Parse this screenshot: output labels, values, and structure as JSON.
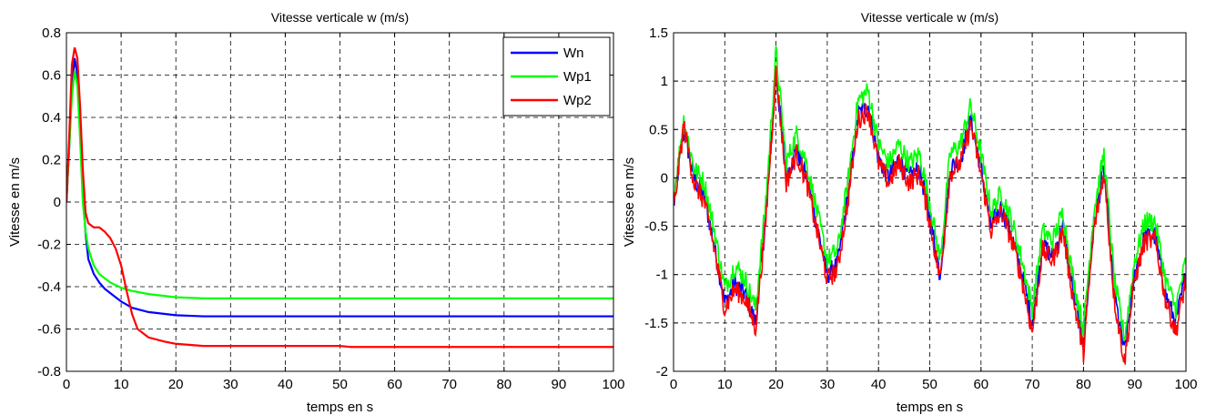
{
  "chart_data": [
    {
      "type": "line",
      "title": "Vitesse verticale w (m/s)",
      "xlabel": "temps en s",
      "ylabel": "Vitesse en m/s",
      "xlim": [
        0,
        100
      ],
      "ylim": [
        -0.8,
        0.8
      ],
      "xticks": [
        0,
        10,
        20,
        30,
        40,
        50,
        60,
        70,
        80,
        90,
        100
      ],
      "yticks": [
        -0.8,
        -0.6,
        -0.4,
        -0.2,
        0,
        0.2,
        0.4,
        0.6,
        0.8
      ],
      "ytick_labels": [
        "-0.8",
        "-0.6",
        "-0.4",
        "-0.2",
        "0",
        "0.2",
        "0.4",
        "0.6",
        "0.8"
      ],
      "grid": true,
      "legend_position": "top-right",
      "series": [
        {
          "name": "Wn",
          "color": "#0000ff",
          "x": [
            0,
            0.5,
            1,
            1.5,
            2,
            2.5,
            3,
            3.5,
            4,
            5,
            6,
            7,
            8,
            10,
            12,
            15,
            20,
            25,
            30,
            40,
            50,
            60,
            70,
            80,
            90,
            100
          ],
          "y": [
            0,
            0.25,
            0.55,
            0.68,
            0.6,
            0.38,
            0.05,
            -0.15,
            -0.27,
            -0.34,
            -0.38,
            -0.41,
            -0.43,
            -0.47,
            -0.5,
            -0.52,
            -0.535,
            -0.54,
            -0.54,
            -0.54,
            -0.54,
            -0.54,
            -0.54,
            -0.54,
            -0.54,
            -0.54
          ]
        },
        {
          "name": "Wp1",
          "color": "#00ff00",
          "x": [
            0,
            0.5,
            1,
            1.5,
            2,
            2.5,
            3,
            3.5,
            4,
            5,
            6,
            7,
            8,
            10,
            12,
            15,
            20,
            25,
            30,
            40,
            50,
            60,
            70,
            80,
            90,
            100
          ],
          "y": [
            0,
            0.25,
            0.5,
            0.62,
            0.55,
            0.3,
            0.0,
            -0.14,
            -0.22,
            -0.3,
            -0.34,
            -0.36,
            -0.38,
            -0.405,
            -0.42,
            -0.435,
            -0.45,
            -0.455,
            -0.455,
            -0.455,
            -0.455,
            -0.455,
            -0.455,
            -0.455,
            -0.455,
            -0.455
          ]
        },
        {
          "name": "Wp2",
          "color": "#ff0000",
          "x": [
            0,
            0.5,
            1,
            1.5,
            2,
            2.5,
            3,
            3.5,
            4,
            5,
            6,
            7,
            8,
            9,
            10,
            11,
            12,
            13,
            15,
            18,
            20,
            25,
            30,
            40,
            50,
            52,
            60,
            70,
            80,
            90,
            100
          ],
          "y": [
            0,
            0.3,
            0.65,
            0.73,
            0.68,
            0.45,
            0.15,
            -0.05,
            -0.1,
            -0.12,
            -0.12,
            -0.14,
            -0.17,
            -0.22,
            -0.3,
            -0.42,
            -0.53,
            -0.6,
            -0.64,
            -0.66,
            -0.67,
            -0.68,
            -0.68,
            -0.68,
            -0.68,
            -0.685,
            -0.685,
            -0.685,
            -0.685,
            -0.685,
            -0.685
          ]
        }
      ]
    },
    {
      "type": "line",
      "title": "Vitesse verticale w (m/s)",
      "xlabel": "temps en s",
      "ylabel": "Vitesse en m/s",
      "xlim": [
        0,
        100
      ],
      "ylim": [
        -2,
        1.5
      ],
      "xticks": [
        0,
        10,
        20,
        30,
        40,
        50,
        60,
        70,
        80,
        90,
        100
      ],
      "yticks": [
        -2,
        -1.5,
        -1,
        -0.5,
        0,
        0.5,
        1,
        1.5
      ],
      "ytick_labels": [
        "-2",
        "-1.5",
        "-1",
        "-0.5",
        "0",
        "0.5",
        "1",
        "1.5"
      ],
      "grid": true,
      "series": [
        {
          "color": "#0000ff",
          "x": [
            0,
            2,
            4,
            6,
            8,
            10,
            12,
            14,
            16,
            18,
            20,
            22,
            24,
            26,
            28,
            30,
            32,
            34,
            36,
            38,
            40,
            42,
            44,
            46,
            48,
            50,
            52,
            54,
            56,
            58,
            60,
            62,
            64,
            66,
            68,
            70,
            72,
            74,
            76,
            78,
            80,
            82,
            84,
            86,
            88,
            90,
            92,
            94,
            96,
            98,
            100
          ],
          "y": [
            -0.3,
            0.5,
            0.0,
            -0.2,
            -0.7,
            -1.3,
            -1.1,
            -1.2,
            -1.5,
            -0.4,
            1.1,
            0.0,
            0.3,
            0.0,
            -0.5,
            -1.0,
            -0.9,
            -0.2,
            0.65,
            0.75,
            0.2,
            0.0,
            0.2,
            0.0,
            0.1,
            -0.4,
            -1.0,
            0.1,
            0.2,
            0.6,
            0.1,
            -0.5,
            -0.3,
            -0.6,
            -1.0,
            -1.5,
            -0.7,
            -0.8,
            -0.5,
            -1.2,
            -1.7,
            -0.5,
            0.1,
            -1.2,
            -1.8,
            -1.0,
            -0.6,
            -0.6,
            -1.2,
            -1.5,
            -1.0
          ]
        },
        {
          "color": "#00ff00",
          "x": [
            0,
            2,
            4,
            6,
            8,
            10,
            12,
            14,
            16,
            18,
            20,
            22,
            24,
            26,
            28,
            30,
            32,
            34,
            36,
            38,
            40,
            42,
            44,
            46,
            48,
            50,
            52,
            54,
            56,
            58,
            60,
            62,
            64,
            66,
            68,
            70,
            72,
            74,
            76,
            78,
            80,
            82,
            84,
            86,
            88,
            90,
            92,
            94,
            96,
            98,
            100
          ],
          "y": [
            -0.2,
            0.6,
            0.1,
            -0.05,
            -0.55,
            -1.15,
            -0.9,
            -1.05,
            -1.35,
            -0.25,
            1.3,
            0.15,
            0.45,
            0.15,
            -0.35,
            -0.85,
            -0.75,
            -0.05,
            0.8,
            0.9,
            0.35,
            0.15,
            0.35,
            0.15,
            0.25,
            -0.25,
            -0.85,
            0.25,
            0.35,
            0.75,
            0.25,
            -0.35,
            -0.15,
            -0.45,
            -0.85,
            -1.35,
            -0.55,
            -0.65,
            -0.35,
            -1.05,
            -1.55,
            -0.35,
            0.25,
            -1.05,
            -1.65,
            -0.85,
            -0.45,
            -0.45,
            -1.05,
            -1.35,
            -0.85
          ]
        },
        {
          "color": "#ff0000",
          "x": [
            0,
            2,
            4,
            6,
            8,
            10,
            12,
            14,
            16,
            18,
            20,
            22,
            24,
            26,
            28,
            30,
            32,
            34,
            36,
            38,
            40,
            42,
            44,
            46,
            48,
            50,
            52,
            54,
            56,
            58,
            60,
            62,
            64,
            66,
            68,
            70,
            72,
            74,
            76,
            78,
            80,
            82,
            84,
            86,
            88,
            90,
            92,
            94,
            96,
            98,
            100
          ],
          "y": [
            -0.35,
            0.55,
            -0.05,
            -0.25,
            -0.75,
            -1.35,
            -1.15,
            -1.25,
            -1.55,
            -0.45,
            1.1,
            -0.05,
            0.25,
            -0.05,
            -0.55,
            -1.05,
            -0.95,
            -0.25,
            0.6,
            0.7,
            0.15,
            -0.05,
            0.15,
            -0.05,
            0.05,
            -0.45,
            -1.05,
            0.05,
            0.15,
            0.55,
            0.05,
            -0.55,
            -0.35,
            -0.65,
            -1.05,
            -1.6,
            -0.75,
            -0.85,
            -0.55,
            -1.25,
            -1.8,
            -0.55,
            0.05,
            -1.25,
            -1.9,
            -1.05,
            -0.65,
            -0.65,
            -1.25,
            -1.6,
            -1.05
          ]
        }
      ]
    }
  ]
}
